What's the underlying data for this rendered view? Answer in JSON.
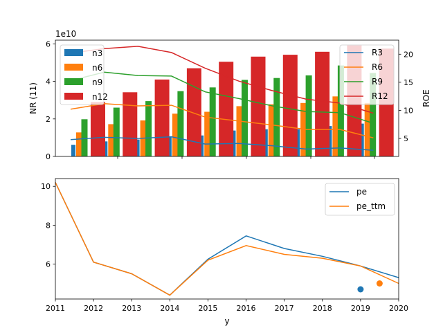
{
  "chart_data": [
    {
      "type": "bar",
      "title": "",
      "exponent_label": "1e10",
      "ylabel": "NR (11)",
      "ylabel_right": "ROE",
      "ylim": [
        0,
        6.2
      ],
      "ylim_right": [
        1.8,
        22.5
      ],
      "yticks": [
        "0",
        "2",
        "4",
        "6"
      ],
      "yticks_right": [
        "5",
        "10",
        "15",
        "20"
      ],
      "x": [
        2011,
        2012,
        2013,
        2014,
        2015,
        2016,
        2017,
        2018,
        2019,
        2020
      ],
      "bar_series": [
        {
          "name": "n3",
          "color": "#1f77b4",
          "values": [
            0.62,
            0.8,
            0.9,
            1.05,
            1.12,
            1.38,
            1.45,
            1.45,
            1.62,
            1.75
          ]
        },
        {
          "name": "n6",
          "color": "#ff7f0e",
          "values": [
            1.28,
            1.72,
            1.92,
            2.28,
            2.38,
            2.68,
            2.78,
            2.85,
            3.2,
            2.85
          ]
        },
        {
          "name": "n9",
          "color": "#2ca02c",
          "values": [
            1.98,
            2.6,
            2.95,
            3.48,
            3.68,
            4.08,
            4.18,
            4.32,
            4.85,
            4.45
          ]
        },
        {
          "name": "n12",
          "color": "#d62728",
          "values": [
            2.9,
            3.42,
            4.1,
            4.7,
            5.05,
            5.32,
            5.42,
            5.58,
            5.92,
            5.75
          ]
        }
      ],
      "line_series": [
        {
          "name": "R3",
          "color": "#1f77b4",
          "values": [
            4.8,
            5.2,
            5.0,
            5.3,
            4.0,
            4.1,
            3.7,
            3.1,
            3.3,
            2.9
          ]
        },
        {
          "name": "R6",
          "color": "#ff7f0e",
          "values": [
            10.2,
            11.2,
            10.8,
            10.9,
            8.8,
            8.1,
            7.4,
            6.6,
            6.6,
            5.1
          ]
        },
        {
          "name": "R9",
          "color": "#2ca02c",
          "values": [
            15.3,
            16.8,
            16.2,
            16.1,
            13.3,
            12.1,
            10.8,
            9.8,
            9.6,
            7.7
          ]
        },
        {
          "name": "R12",
          "color": "#d62728",
          "values": [
            20.2,
            21.0,
            21.4,
            20.3,
            17.5,
            15.2,
            13.5,
            12.0,
            11.3,
            9.5
          ]
        }
      ],
      "legend_left_placement": "upper-left",
      "legend_right_placement": "upper-right",
      "grid": false
    },
    {
      "type": "line",
      "title": "",
      "xlabel": "y",
      "ylabel": "",
      "xlim": [
        2011,
        2020
      ],
      "ylim": [
        4.2,
        10.4
      ],
      "xticks": [
        "2011",
        "2012",
        "2013",
        "2014",
        "2015",
        "2016",
        "2017",
        "2018",
        "2019",
        "2020"
      ],
      "yticks": [
        "6",
        "8",
        "10"
      ],
      "x": [
        2011,
        2012,
        2013,
        2014,
        2015,
        2016,
        2017,
        2018,
        2019,
        2020
      ],
      "series": [
        {
          "name": "pe",
          "color": "#1f77b4",
          "values": [
            10.2,
            6.1,
            5.5,
            4.4,
            6.25,
            7.45,
            6.8,
            6.4,
            5.9,
            5.3
          ]
        },
        {
          "name": "pe_ttm",
          "color": "#ff7f0e",
          "values": [
            10.2,
            6.1,
            5.5,
            4.4,
            6.2,
            6.95,
            6.5,
            6.3,
            5.9,
            5.0
          ]
        }
      ],
      "points": [
        {
          "name": "pe",
          "color": "#1f77b4",
          "x": 2019.0,
          "y": 4.7
        },
        {
          "name": "pe_ttm",
          "color": "#ff7f0e",
          "x": 2019.5,
          "y": 5.0
        }
      ],
      "legend_placement": "upper-right",
      "grid": false
    }
  ]
}
